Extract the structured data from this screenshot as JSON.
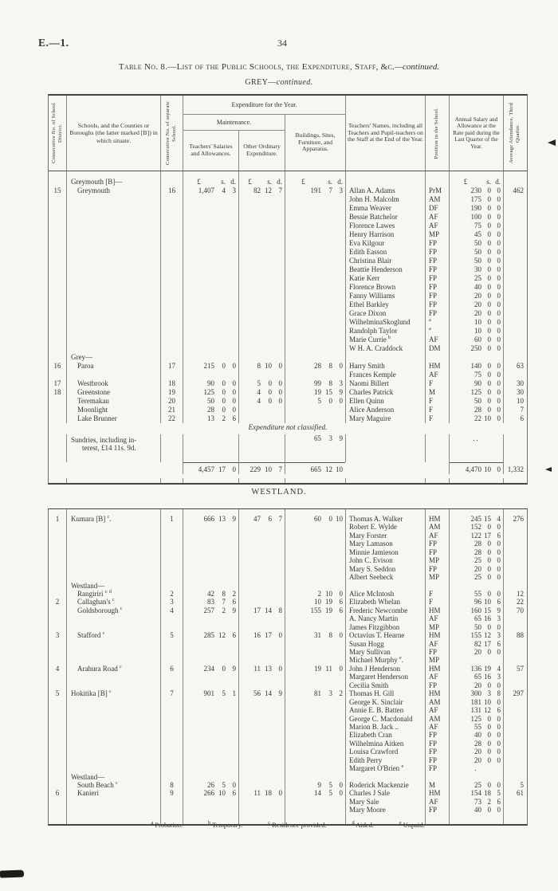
{
  "page": {
    "doc_ref": "E.—1.",
    "page_number": "34",
    "title_main": "Table No. 8.—List of the Public Schools, the Expenditure, Staff, &c.",
    "title_cont": "—continued.",
    "grey_heading_main": "GREY—",
    "grey_heading_cont": "continued.",
    "westland_heading": "WESTLAND.",
    "footnotes": [
      {
        "m": "a",
        "t": "Probation."
      },
      {
        "m": "b",
        "t": "Temporary."
      },
      {
        "m": "c",
        "t": "Residence provided."
      },
      {
        "m": "d",
        "t": "Aided."
      },
      {
        "m": "e",
        "t": "Unpaid."
      }
    ]
  },
  "table_headers": {
    "district": "Consecutive No. of School District.",
    "school": "Schools, and the Counties or Boroughs (the latter marked [B]) in which situate.",
    "school_no": "Consecutive No. of separate School.",
    "expenditure_group": "Expenditure for the Year.",
    "maintenance_group": "Maintenance.",
    "salaries": "Teachers' Salaries and Allowances.",
    "other": "Other Ordinary Expenditure.",
    "buildings": "Buildings, Sites, Furniture, and Apparatus.",
    "teachers": "Teachers' Names, including all Teachers and Pupil-teachers on the Staff at the End of the Year.",
    "position": "Position in the School.",
    "salary": "Annual Salary and Allowance at the Rate paid during the Last Quarter of the Year.",
    "attendance": "Average Attendance, Third Quarter."
  },
  "money_unit": {
    "pounds": "£",
    "shillings": "s.",
    "pence": "d."
  },
  "grey_rows": [
    {
      "type": "spacer",
      "h": 8
    },
    {
      "type": "mh",
      "s": "Greymouth [B]—"
    },
    {
      "d": "15",
      "i": 1,
      "s": "Greymouth",
      "n": "16",
      "m1": [
        "1,407",
        "4",
        "3"
      ],
      "m2": [
        "82",
        "12",
        "7"
      ],
      "m3": [
        "191",
        "7",
        "3"
      ],
      "t": "Allan A. Adams",
      "p": "PrM",
      "m4": [
        "230",
        "0",
        "0"
      ],
      "a": "462"
    },
    {
      "t": "John H. Malcolm",
      "p": "AM",
      "m4": [
        "175",
        "0",
        "0"
      ]
    },
    {
      "t": "Emma Weaver",
      "p": "DF",
      "m4": [
        "190",
        "0",
        "0"
      ]
    },
    {
      "t": "Bessie Batchelor",
      "p": "AF",
      "m4": [
        "100",
        "0",
        "0"
      ]
    },
    {
      "t": "Florence Lawes",
      "p": "AF",
      "m4": [
        "75",
        "0",
        "0"
      ]
    },
    {
      "t": "Henry Harrison",
      "p": "MP",
      "m4": [
        "45",
        "0",
        "0"
      ]
    },
    {
      "t": "Eva Kilgour",
      "p": "FP",
      "m4": [
        "50",
        "0",
        "0"
      ]
    },
    {
      "t": "Edith Easson",
      "p": "FP",
      "m4": [
        "50",
        "0",
        "0"
      ]
    },
    {
      "t": "Christina Blair",
      "p": "FP",
      "m4": [
        "50",
        "0",
        "0"
      ]
    },
    {
      "t": "Beattie Henderson",
      "p": "FP",
      "m4": [
        "30",
        "0",
        "0"
      ]
    },
    {
      "t": "Katie Kerr",
      "p": "FP",
      "m4": [
        "25",
        "0",
        "0"
      ]
    },
    {
      "t": "Florence Brown",
      "p": "FP",
      "m4": [
        "40",
        "0",
        "0"
      ]
    },
    {
      "t": "Fanny Williams",
      "p": "FP",
      "m4": [
        "20",
        "0",
        "0"
      ]
    },
    {
      "t": "Ethel Barkley",
      "p": "FP",
      "m4": [
        "20",
        "0",
        "0"
      ]
    },
    {
      "t": "Grace Dixon",
      "p": "FP",
      "m4": [
        "20",
        "0",
        "0"
      ]
    },
    {
      "t": "WilhelminaSkoglund",
      "p": "^a",
      "m4": [
        "10",
        "0",
        "0"
      ]
    },
    {
      "t": "Randolph Taylor",
      "p": "^a",
      "m4": [
        "10",
        "0",
        "0"
      ]
    },
    {
      "t": "Marie Currie ^b",
      "p": "AF",
      "m4": [
        "60",
        "0",
        "0"
      ]
    },
    {
      "t": "W H. A. Craddock",
      "p": "DM",
      "m4": [
        "250",
        "0",
        "0"
      ]
    },
    {
      "type": "sec",
      "s": "Grey—"
    },
    {
      "d": "16",
      "i": 1,
      "s": "Paroa",
      "n": "17",
      "m1": [
        "215",
        "0",
        "0"
      ],
      "m2": [
        "8",
        "10",
        "0"
      ],
      "m3": [
        "28",
        "8",
        "0"
      ],
      "t": "Harry Smith",
      "p": "HM",
      "m4": [
        "140",
        "0",
        "0"
      ],
      "a": "63"
    },
    {
      "t": "Frances Kemple",
      "p": "AF",
      "m4": [
        "75",
        "0",
        "0"
      ]
    },
    {
      "d": "17",
      "i": 1,
      "s": "Westbrook",
      "n": "18",
      "m1": [
        "90",
        "0",
        "0"
      ],
      "m2": [
        "5",
        "0",
        "0"
      ],
      "m3": [
        "99",
        "8",
        "3"
      ],
      "t": "Naomi Billert",
      "p": "F",
      "m4": [
        "90",
        "0",
        "0"
      ],
      "a": "30"
    },
    {
      "d": "18",
      "i": 1,
      "s": "Greenstone",
      "n": "19",
      "m1": [
        "125",
        "0",
        "0"
      ],
      "m2": [
        "4",
        "0",
        "0"
      ],
      "m3": [
        "19",
        "15",
        "9"
      ],
      "t": "Charles Patrick",
      "p": "M",
      "m4": [
        "125",
        "0",
        "0"
      ],
      "a": "30"
    },
    {
      "i": 1,
      "s": "Teremakau",
      "n": "20",
      "m1": [
        "50",
        "0",
        "0"
      ],
      "m2": [
        "4",
        "0",
        "0"
      ],
      "m3": [
        "5",
        "0",
        "0"
      ],
      "t": "Ellen Quinn",
      "p": "F",
      "m4": [
        "50",
        "0",
        "0"
      ],
      "a": "10"
    },
    {
      "i": 1,
      "s": "Moonlight",
      "n": "21",
      "m1": [
        "28",
        "0",
        "0"
      ],
      "t": "Alice Anderson",
      "p": "F",
      "m4": [
        "28",
        "0",
        "0"
      ],
      "a": "7"
    },
    {
      "i": 1,
      "s": "Lake Brunner",
      "n": "22",
      "m1": [
        "13",
        "2",
        "6"
      ],
      "t": "Mary Maguire",
      "p": "F",
      "m4": [
        "22",
        "10",
        "0"
      ],
      "a": "6"
    },
    {
      "type": "note",
      "s": "Expenditure not classified."
    },
    {
      "type": "sundries",
      "s1": "Sundries, including in-",
      "s2": "terest, £14 11s. 9d.",
      "m3": [
        "65",
        "3",
        "9"
      ],
      "dots": ".."
    },
    {
      "type": "spacer",
      "h": 9
    },
    {
      "type": "totals",
      "m1": [
        "4,457",
        "17",
        "0"
      ],
      "m2": [
        "229",
        "10",
        "7"
      ],
      "m3": [
        "665",
        "12",
        "10"
      ],
      "m4": [
        "4,470",
        "10",
        "0"
      ],
      "a": "1,332"
    },
    {
      "type": "spacer",
      "h": 6
    }
  ],
  "westland_rows": [
    {
      "type": "spacer",
      "h": 7
    },
    {
      "d": "1",
      "i": 0,
      "s": "Kumara [B] ^c.",
      "n": "1",
      "m1": [
        "666",
        "13",
        "9"
      ],
      "m2": [
        "47",
        "6",
        "7"
      ],
      "m3": [
        "60",
        "0",
        "10"
      ],
      "t": "Thomas A. Walker",
      "p": "HM",
      "m4": [
        "245",
        "15",
        "4"
      ],
      "a": "276"
    },
    {
      "t": "Robert E. Wylde",
      "p": "AM",
      "m4": [
        "152",
        "0",
        "0"
      ]
    },
    {
      "t": "Mary Forster",
      "p": "AF",
      "m4": [
        "122",
        "17",
        "6"
      ]
    },
    {
      "t": "Mary Lamason",
      "p": "FP",
      "m4": [
        "28",
        "0",
        "0"
      ]
    },
    {
      "t": "Minnie Jamieson",
      "p": "FP",
      "m4": [
        "28",
        "0",
        "0"
      ]
    },
    {
      "t": "John C. Evison",
      "p": "MP",
      "m4": [
        "25",
        "0",
        "0"
      ]
    },
    {
      "t": "Mary S. Seddon",
      "p": "FP",
      "m4": [
        "20",
        "0",
        "0"
      ]
    },
    {
      "t": "Albert Seebeck",
      "p": "MP",
      "m4": [
        "25",
        "0",
        "0"
      ]
    },
    {
      "type": "sec",
      "s": "Westland—"
    },
    {
      "i": 1,
      "s": "Rangiriri ^c ^d",
      "n": "2",
      "m1": [
        "42",
        "8",
        "2"
      ],
      "m3": [
        "2",
        "10",
        "0"
      ],
      "t": "Alice McIntosh",
      "p": "F",
      "m4": [
        "55",
        "0",
        "0"
      ],
      "a": "12"
    },
    {
      "d": "2",
      "i": 1,
      "s": "Callaghan's ^c",
      "n": "3",
      "m1": [
        "83",
        "7",
        "6"
      ],
      "m3": [
        "10",
        "19",
        "6"
      ],
      "t": "Elizabeth Whelan",
      "p": "F",
      "m4": [
        "96",
        "10",
        "6"
      ],
      "a": "22"
    },
    {
      "i": 1,
      "s": "Goldsborough ^c",
      "n": "4",
      "m1": [
        "257",
        "2",
        "9"
      ],
      "m2": [
        "17",
        "14",
        "8"
      ],
      "m3": [
        "155",
        "19",
        "6"
      ],
      "t": "Frederic Newcombe",
      "p": "HM",
      "m4": [
        "160",
        "15",
        "9"
      ],
      "a": "70"
    },
    {
      "t": "A. Nancy Martin",
      "p": "AF",
      "m4": [
        "65",
        "16",
        "3"
      ]
    },
    {
      "t": "James Fitzgibbon",
      "p": "MP",
      "m4": [
        "50",
        "0",
        "0"
      ]
    },
    {
      "d": "3",
      "i": 1,
      "s": "Stafford ^c",
      "n": "5",
      "m1": [
        "285",
        "12",
        "6"
      ],
      "m2": [
        "16",
        "17",
        "0"
      ],
      "m3": [
        "31",
        "8",
        "0"
      ],
      "t": "Octavius T. Hearne",
      "p": "HM",
      "m4": [
        "155",
        "12",
        "3"
      ],
      "a": "88"
    },
    {
      "t": "Susan Hogg",
      "p": "AF",
      "m4": [
        "82",
        "17",
        "6"
      ]
    },
    {
      "t": "Mary Sullivan",
      "p": "FP",
      "m4": [
        "20",
        "0",
        "0"
      ]
    },
    {
      "t": "Michael Murphy ^e.",
      "p": "MP"
    },
    {
      "d": "4",
      "i": 1,
      "s": "Arahura Road ^c",
      "n": "6",
      "m1": [
        "234",
        "0",
        "9"
      ],
      "m2": [
        "11",
        "13",
        "0"
      ],
      "m3": [
        "19",
        "11",
        "0"
      ],
      "t": "John J Henderson",
      "p": "HM",
      "m4": [
        "136",
        "19",
        "4"
      ],
      "a": "57"
    },
    {
      "t": "Margaret Henderson",
      "p": "AF",
      "m4": [
        "65",
        "16",
        "3"
      ]
    },
    {
      "t": "Cecilia Smith",
      "p": "FP",
      "m4": [
        "20",
        "0",
        "0"
      ]
    },
    {
      "d": "5",
      "i": 0,
      "s": "Hokitika [B] ^c",
      "n": "7",
      "m1": [
        "901",
        "5",
        "1"
      ],
      "m2": [
        "56",
        "14",
        "9"
      ],
      "m3": [
        "81",
        "3",
        "2"
      ],
      "t": "Thomas H. Gill",
      "p": "HM",
      "m4": [
        "300",
        "3",
        "8"
      ],
      "a": "297"
    },
    {
      "t": "George K. Sinclair",
      "p": "AM",
      "m4": [
        "181",
        "10",
        "0"
      ]
    },
    {
      "t": "Annie E. B. Batten",
      "p": "AF",
      "m4": [
        "131",
        "12",
        "6"
      ]
    },
    {
      "t": "George C. Macdonald",
      "p": "AM",
      "m4": [
        "125",
        "0",
        "0"
      ]
    },
    {
      "t": "Marion B. Jack ..",
      "p": "AF",
      "m4": [
        "55",
        "0",
        "0"
      ]
    },
    {
      "t": "Elizabeth Cran",
      "p": "FP",
      "m4": [
        "40",
        "0",
        "0"
      ]
    },
    {
      "t": "Wilhelmina Aitken",
      "p": "FP",
      "m4": [
        "28",
        "0",
        "0"
      ]
    },
    {
      "t": "Louisa Crawford",
      "p": "FP",
      "m4": [
        "20",
        "0",
        "0"
      ]
    },
    {
      "t": "Edith Perry",
      "p": "FP",
      "m4": [
        "20",
        "0",
        "0"
      ]
    },
    {
      "t": "Margaret O'Brien ^e",
      "p": "FP",
      "dots": "."
    },
    {
      "type": "sec",
      "s": "Westland—"
    },
    {
      "i": 1,
      "s": "South Beach ^c",
      "n": "8",
      "m1": [
        "26",
        "5",
        "0"
      ],
      "m3": [
        "9",
        "5",
        "0"
      ],
      "t": "Roderick Mackenzie",
      "p": "M",
      "m4": [
        "25",
        "0",
        "0"
      ],
      "a": "5"
    },
    {
      "d": "6",
      "i": 1,
      "s": "Kanieri",
      "n": "9",
      "m1": [
        "266",
        "10",
        "6"
      ],
      "m2": [
        "11",
        "18",
        "0"
      ],
      "m3": [
        "14",
        "5",
        "0"
      ],
      "t": "Charles J Sale",
      "p": "HM",
      "m4": [
        "154",
        "18",
        "5"
      ],
      "a": "61"
    },
    {
      "t": "Mary Sale",
      "p": "AF",
      "m4": [
        "73",
        "2",
        "6"
      ]
    },
    {
      "t": "Mary Moore",
      "p": "FP",
      "m4": [
        "40",
        "0",
        "0"
      ]
    },
    {
      "type": "spacer",
      "h": 12
    }
  ]
}
